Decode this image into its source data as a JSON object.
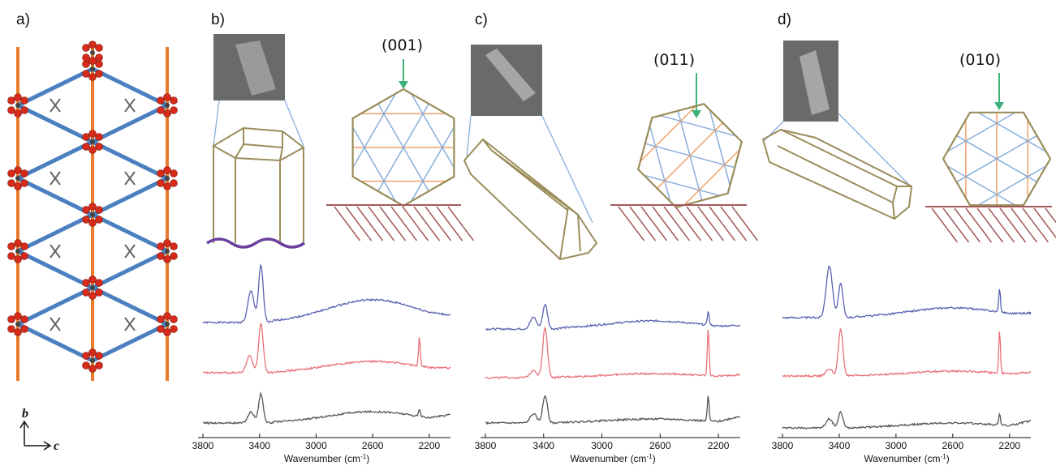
{
  "panel_labels": [
    "a)",
    "b)",
    "c)",
    "d)"
  ],
  "axis_letters": {
    "vertical": "b",
    "horizontal": "c"
  },
  "colors": {
    "crystal_outline": "#9a8d5a",
    "lattice_blue": "#88aedb",
    "lattice_orange": "#f0a06a",
    "arrow_green": "#3fb27a",
    "substrate": "#a55a5a",
    "wave": "#6a3fa0",
    "trace_blue": "#5a62b0",
    "trace_red": "#e8707a",
    "trace_gray": "#555555",
    "framework_blue": "#4a7fc0",
    "framework_orange": "#e87a2a",
    "atom_red": "#d62a1a"
  },
  "panels": [
    {
      "id": "b",
      "label": "b)",
      "face": "(001)",
      "substrate": "wavy"
    },
    {
      "id": "c",
      "label": "c)",
      "face": "(011)",
      "substrate": "flat"
    },
    {
      "id": "d",
      "label": "d)",
      "face": "(010)",
      "substrate": "flat"
    }
  ],
  "chart_data": [
    {
      "type": "line",
      "panel": "b",
      "xlabel_main": "Wavenumber (cm",
      "xlabel_sup": "-1",
      "xlabel_end": ")",
      "xlim": [
        3800,
        2050
      ],
      "x_ticks": [
        3800,
        3400,
        3000,
        2600,
        2200
      ],
      "x_tick_labels": [
        "3800",
        "3400",
        "3000",
        "2600",
        "2200"
      ],
      "series": [
        {
          "color": "blue",
          "peaks": [
            {
              "x": 3460,
              "h": 0.55
            },
            {
              "x": 3390,
              "h": 1.0
            }
          ]
        },
        {
          "color": "red",
          "peaks": [
            {
              "x": 3470,
              "h": 0.35
            },
            {
              "x": 3390,
              "h": 1.0
            },
            {
              "x": 2270,
              "h": 0.6
            }
          ]
        },
        {
          "color": "gray",
          "peaks": [
            {
              "x": 3460,
              "h": 0.3
            },
            {
              "x": 3390,
              "h": 0.8
            },
            {
              "x": 2270,
              "h": 0.2
            }
          ]
        }
      ]
    },
    {
      "type": "line",
      "panel": "c",
      "xlabel_main": "Wavenumber (cm",
      "xlabel_sup": "-1",
      "xlabel_end": ")",
      "xlim": [
        3800,
        2050
      ],
      "x_ticks": [
        3800,
        3400,
        3000,
        2600,
        2200
      ],
      "x_tick_labels": [
        "3800",
        "3400",
        "3000",
        "2600",
        "2200"
      ],
      "series": [
        {
          "color": "blue",
          "peaks": [
            {
              "x": 3470,
              "h": 0.45
            },
            {
              "x": 3390,
              "h": 0.95
            },
            {
              "x": 2270,
              "h": 0.55
            }
          ]
        },
        {
          "color": "red",
          "peaks": [
            {
              "x": 3470,
              "h": 0.15
            },
            {
              "x": 3390,
              "h": 1.0
            },
            {
              "x": 2270,
              "h": 0.95
            }
          ]
        },
        {
          "color": "gray",
          "peaks": [
            {
              "x": 3470,
              "h": 0.25
            },
            {
              "x": 3390,
              "h": 0.75
            },
            {
              "x": 2270,
              "h": 0.7
            }
          ]
        }
      ]
    },
    {
      "type": "line",
      "panel": "d",
      "xlabel_main": "Wavenumber (cm",
      "xlabel_sup": "-1",
      "xlabel_end": ")",
      "xlim": [
        3800,
        2050
      ],
      "x_ticks": [
        3800,
        3400,
        3000,
        2600,
        2200
      ],
      "x_tick_labels": [
        "3800",
        "3400",
        "3000",
        "2600",
        "2200"
      ],
      "series": [
        {
          "color": "blue",
          "peaks": [
            {
              "x": 3470,
              "h": 1.0
            },
            {
              "x": 3390,
              "h": 0.65
            },
            {
              "x": 2270,
              "h": 0.45
            }
          ]
        },
        {
          "color": "red",
          "peaks": [
            {
              "x": 3470,
              "h": 0.15
            },
            {
              "x": 3390,
              "h": 1.0
            },
            {
              "x": 2270,
              "h": 0.9
            }
          ]
        },
        {
          "color": "gray",
          "peaks": [
            {
              "x": 3470,
              "h": 0.35
            },
            {
              "x": 3390,
              "h": 0.6
            },
            {
              "x": 2270,
              "h": 0.45
            }
          ]
        }
      ]
    }
  ]
}
